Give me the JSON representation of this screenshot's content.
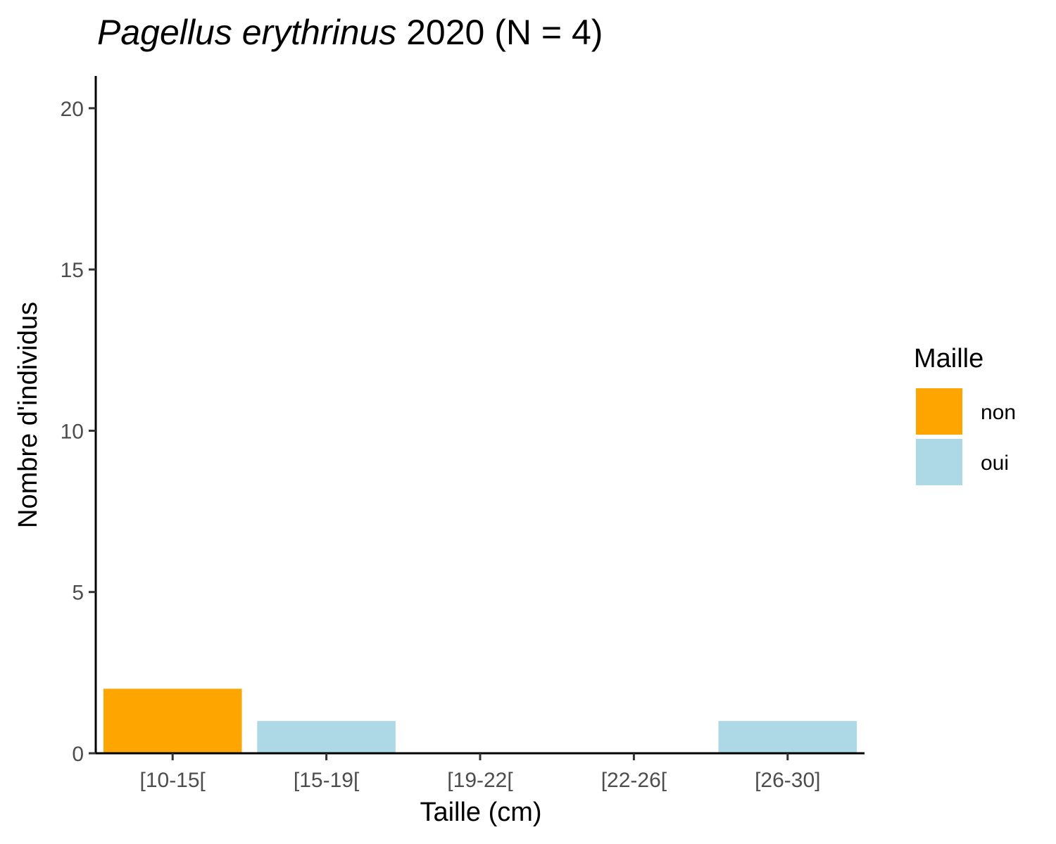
{
  "chart_data": {
    "type": "bar",
    "title": {
      "italic": "Pagellus erythrinus",
      "rest": " 2020 (N = 4)"
    },
    "xlabel": "Taille (cm)",
    "ylabel": "Nombre d'individus",
    "categories": [
      "[10-15[",
      "[15-19[",
      "[19-22[",
      "[22-26[",
      "[26-30]"
    ],
    "values": [
      2,
      1,
      0,
      0,
      1
    ],
    "fill_group": [
      "non",
      "oui",
      null,
      null,
      "oui"
    ],
    "ylim": [
      0,
      21
    ],
    "yticks": [
      0,
      5,
      10,
      15,
      20
    ],
    "grid": false,
    "legend": {
      "title": "Maille",
      "position": "right",
      "items": [
        {
          "label": "non",
          "color": "#FFA500"
        },
        {
          "label": "oui",
          "color": "#ADD8E6"
        }
      ]
    }
  }
}
